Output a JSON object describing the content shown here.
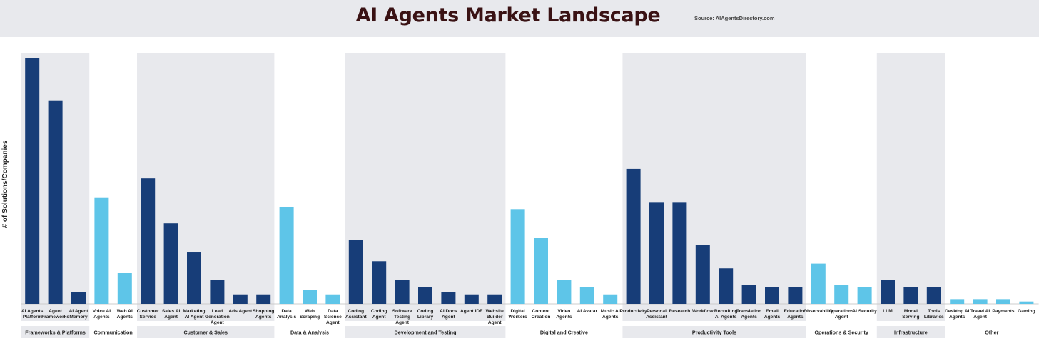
{
  "header": {
    "title": "AI Agents Market Landscape",
    "source": "Source: AIAgentsDirectory.com"
  },
  "chart_data": {
    "type": "bar",
    "title": "AI Agents Market Landscape",
    "ylabel": "# of Solutions/Companies",
    "xlabel": "",
    "ylim": [
      0,
      104
    ],
    "grid": false,
    "colors": {
      "dark": "#173d78",
      "light": "#5ec5e8",
      "band": "#e8e9ed"
    },
    "groups": [
      {
        "name": "Frameworks & Platforms",
        "shaded": true,
        "color": "dark",
        "categories": [
          {
            "label": "AI Agents Platform",
            "value": 104
          },
          {
            "label": "Agent Frameworks",
            "value": 86
          },
          {
            "label": "AI Agent Memory",
            "value": 5
          }
        ]
      },
      {
        "name": "Communication",
        "shaded": false,
        "color": "light",
        "categories": [
          {
            "label": "Voice AI Agents",
            "value": 45
          },
          {
            "label": "Web AI Agents",
            "value": 13
          }
        ]
      },
      {
        "name": "Customer & Sales",
        "shaded": true,
        "color": "dark",
        "categories": [
          {
            "label": "Customer Service",
            "value": 53
          },
          {
            "label": "Sales AI Agent",
            "value": 34
          },
          {
            "label": "Marketing AI Agent",
            "value": 22
          },
          {
            "label": "Lead Generation Agent",
            "value": 10
          },
          {
            "label": "Ads Agent",
            "value": 4
          },
          {
            "label": "Shopping Agents",
            "value": 4
          }
        ]
      },
      {
        "name": "Data & Analysis",
        "shaded": false,
        "color": "light",
        "categories": [
          {
            "label": "Data Analysis",
            "value": 41
          },
          {
            "label": "Web Scraping",
            "value": 6
          },
          {
            "label": "Data Science Agent",
            "value": 4
          }
        ]
      },
      {
        "name": "Development and Testing",
        "shaded": true,
        "color": "dark",
        "categories": [
          {
            "label": "Coding Assistant",
            "value": 27
          },
          {
            "label": "Coding Agent",
            "value": 18
          },
          {
            "label": "Software Testing Agent",
            "value": 10
          },
          {
            "label": "Coding Library",
            "value": 7
          },
          {
            "label": "AI Docs Agent",
            "value": 5
          },
          {
            "label": "Agent IDE",
            "value": 4
          },
          {
            "label": "Website Builder Agent",
            "value": 4
          }
        ]
      },
      {
        "name": "Digital and Creative",
        "shaded": false,
        "color": "light",
        "categories": [
          {
            "label": "Digital Workers",
            "value": 40
          },
          {
            "label": "Content Creation",
            "value": 28
          },
          {
            "label": "Video Agents",
            "value": 10
          },
          {
            "label": "AI Avatar",
            "value": 7
          },
          {
            "label": "Music AI Agents",
            "value": 4
          }
        ]
      },
      {
        "name": "Productivity Tools",
        "shaded": true,
        "color": "dark",
        "categories": [
          {
            "label": "Productivity",
            "value": 57
          },
          {
            "label": "Personal Assistant",
            "value": 43
          },
          {
            "label": "Research",
            "value": 43
          },
          {
            "label": "Workflow",
            "value": 25
          },
          {
            "label": "Recruiting AI Agents",
            "value": 15
          },
          {
            "label": "Translation Agents",
            "value": 8
          },
          {
            "label": "Email Agents",
            "value": 7
          },
          {
            "label": "Education Agents",
            "value": 7
          }
        ]
      },
      {
        "name": "Operations & Security",
        "shaded": false,
        "color": "light",
        "categories": [
          {
            "label": "Observability",
            "value": 17
          },
          {
            "label": "Operations Agent",
            "value": 8
          },
          {
            "label": "AI Security",
            "value": 7
          }
        ]
      },
      {
        "name": "Infrastructure",
        "shaded": true,
        "color": "dark",
        "categories": [
          {
            "label": "LLM",
            "value": 10
          },
          {
            "label": "Model Serving",
            "value": 7
          },
          {
            "label": "Tools Libraries",
            "value": 7
          }
        ]
      },
      {
        "name": "Other",
        "shaded": false,
        "color": "light",
        "categories": [
          {
            "label": "Desktop AI Agents",
            "value": 2
          },
          {
            "label": "Travel AI Agent",
            "value": 2
          },
          {
            "label": "Payments",
            "value": 2
          },
          {
            "label": "Gaming",
            "value": 1
          }
        ]
      }
    ]
  }
}
